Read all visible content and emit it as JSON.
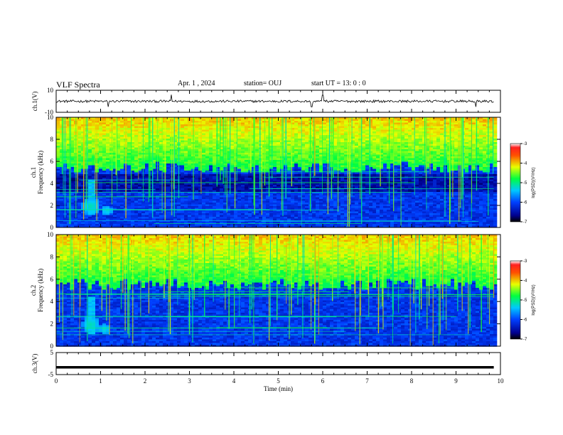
{
  "header": {
    "title": "VLF Spectra",
    "date": "Apr. 1 , 2024",
    "station": "station= OUJ",
    "start": "start UT = 13: 0 : 0"
  },
  "chart_data": {
    "type": "heatmap",
    "xlabel": "Time (min)",
    "xlim": [
      0,
      10
    ],
    "x_ticks": [
      "0",
      "1",
      "2",
      "3",
      "4",
      "5",
      "6",
      "7",
      "8",
      "9",
      "10"
    ],
    "panels": [
      {
        "name": "ch1-waveform",
        "type": "line",
        "ylabel": "ch.1(V)",
        "ylim": [
          -10,
          10
        ],
        "y_ticks": [
          "10",
          "-10"
        ],
        "baseline": 0,
        "x_end": 9.85,
        "spike_times": [
          1.17,
          2.6,
          5.75,
          6.0,
          9.45
        ]
      },
      {
        "name": "ch1-spectrogram",
        "type": "heatmap",
        "ylabel_1": "ch.1",
        "ylabel_2": "Frequency (kHz)",
        "ylim": [
          0,
          10
        ],
        "y_ticks": [
          "0",
          "2",
          "4",
          "6",
          "8",
          "10"
        ],
        "x_end": 9.85,
        "noise_edge_khz": 5.5,
        "dark_band_khz": [
          3.3,
          5.0
        ],
        "blob": {
          "t": 0.75,
          "f": 2.0
        },
        "blob2": {
          "t": 1.1,
          "f": 1.6
        },
        "colorbar": {
          "label": "log(PSD)(V²/Hz)",
          "ticks": [
            "-3",
            "-4",
            "-5",
            "-6",
            "-7"
          ],
          "range": [
            -7,
            -3
          ]
        }
      },
      {
        "name": "ch2-spectrogram",
        "type": "heatmap",
        "ylabel_1": "ch.2",
        "ylabel_2": "Frequency (kHz)",
        "ylim": [
          0,
          10
        ],
        "y_ticks": [
          "0",
          "2",
          "4",
          "6",
          "8",
          "10"
        ],
        "x_end": 9.85,
        "noise_edge_khz": 5.6,
        "blob": {
          "t": 0.75,
          "f": 2.0
        },
        "blob2": {
          "t": 1.05,
          "f": 1.6
        },
        "colorbar": {
          "label": "log(PSD)(V²/Hz)",
          "ticks": [
            "-3",
            "-4",
            "-5",
            "-6",
            "-7"
          ],
          "range": [
            -7,
            -3
          ]
        }
      },
      {
        "name": "ch3-waveform",
        "type": "line",
        "ylabel": "ch.3(V)",
        "ylim": [
          -5,
          5
        ],
        "y_ticks": [
          "5",
          "-5"
        ],
        "baseline": -1.7,
        "x_end": 9.85
      }
    ]
  }
}
